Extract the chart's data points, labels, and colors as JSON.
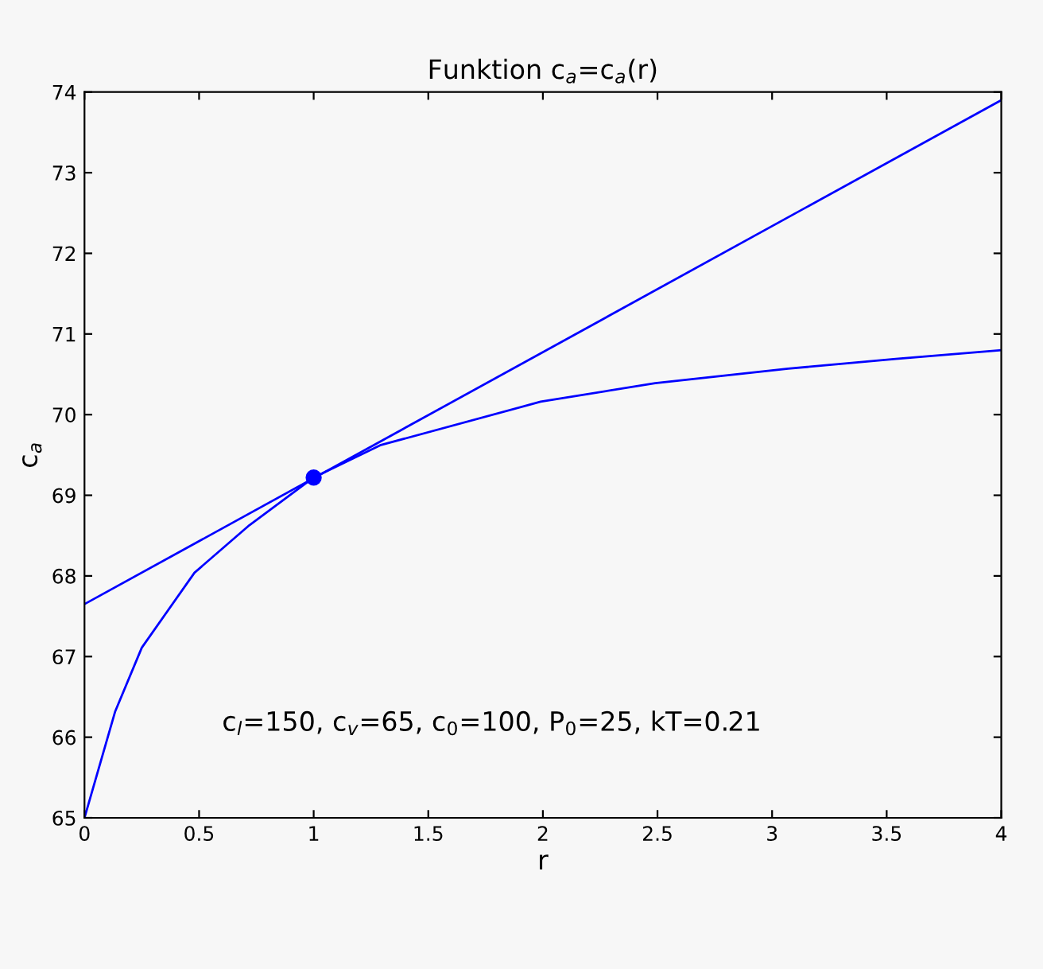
{
  "chart_data": {
    "type": "line",
    "title": "Funktion c$_{a}$=c$_{a}$(r)",
    "xlabel": "r",
    "ylabel": "c$_{a}$",
    "series": [
      {
        "color": "#0000ff",
        "x": [
          0,
          0.134,
          0.25,
          0.48,
          0.72,
          1,
          1.29,
          1.99,
          2.49,
          3.07,
          3.54,
          4
        ],
        "values": [
          65,
          66.32,
          67.11,
          68.04,
          68.63,
          69.22,
          69.62,
          70.16,
          70.39,
          70.57,
          70.69,
          70.8
        ]
      },
      {
        "color": "#0000ff",
        "x": [
          0,
          4
        ],
        "values": [
          67.65,
          73.9
        ]
      },
      {
        "type": "scatter",
        "color": "#0000ff",
        "x": [
          1
        ],
        "values": [
          69.22
        ]
      }
    ],
    "annotations": [
      "c$_{l}$=150, c$_{v}$=65, c$_{0}$=100, P$_{0}$=25, kT=0.21"
    ],
    "xlim": [
      0,
      4
    ],
    "ylim": [
      65,
      74
    ],
    "xticks": [
      0,
      0.5,
      1,
      1.5,
      2,
      2.5,
      3,
      3.5,
      4
    ],
    "yticks": [
      65,
      66,
      67,
      68,
      69,
      70,
      71,
      72,
      73,
      74
    ],
    "grid": false,
    "legend": false
  }
}
